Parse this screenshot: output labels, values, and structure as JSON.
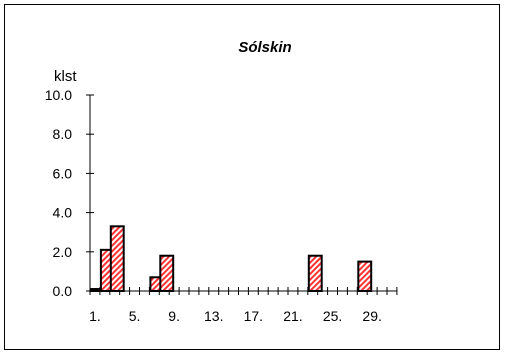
{
  "chart_data": {
    "type": "bar",
    "title": "Sólskin",
    "ylabel": "klst",
    "xlabel": "",
    "ylim": [
      0,
      10
    ],
    "y_ticks": [
      "0.0",
      "2.0",
      "4.0",
      "6.0",
      "8.0",
      "10.0"
    ],
    "x_tick_labels": [
      {
        "day": 1,
        "label": "1."
      },
      {
        "day": 5,
        "label": "5."
      },
      {
        "day": 9,
        "label": "9."
      },
      {
        "day": 13,
        "label": "13."
      },
      {
        "day": 17,
        "label": "17."
      },
      {
        "day": 21,
        "label": "21."
      },
      {
        "day": 25,
        "label": "25."
      },
      {
        "day": 29,
        "label": "29."
      }
    ],
    "days": [
      1,
      2,
      3,
      4,
      5,
      6,
      7,
      8,
      9,
      10,
      11,
      12,
      13,
      14,
      15,
      16,
      17,
      18,
      19,
      20,
      21,
      22,
      23,
      24,
      25,
      26,
      27,
      28,
      29,
      30,
      31
    ],
    "values": [
      0.1,
      2.1,
      3.3,
      0,
      0,
      0,
      0.7,
      1.8,
      0,
      0,
      0,
      0,
      0,
      0,
      0,
      0,
      0,
      0,
      0,
      0,
      0,
      0,
      1.8,
      0,
      0,
      0,
      0,
      1.5,
      0,
      0,
      0
    ],
    "grid": false,
    "legend": "none",
    "bar_fill": "#ff3333",
    "bar_hatch_bg": "#ffffff",
    "bar_stroke": "#000000"
  }
}
